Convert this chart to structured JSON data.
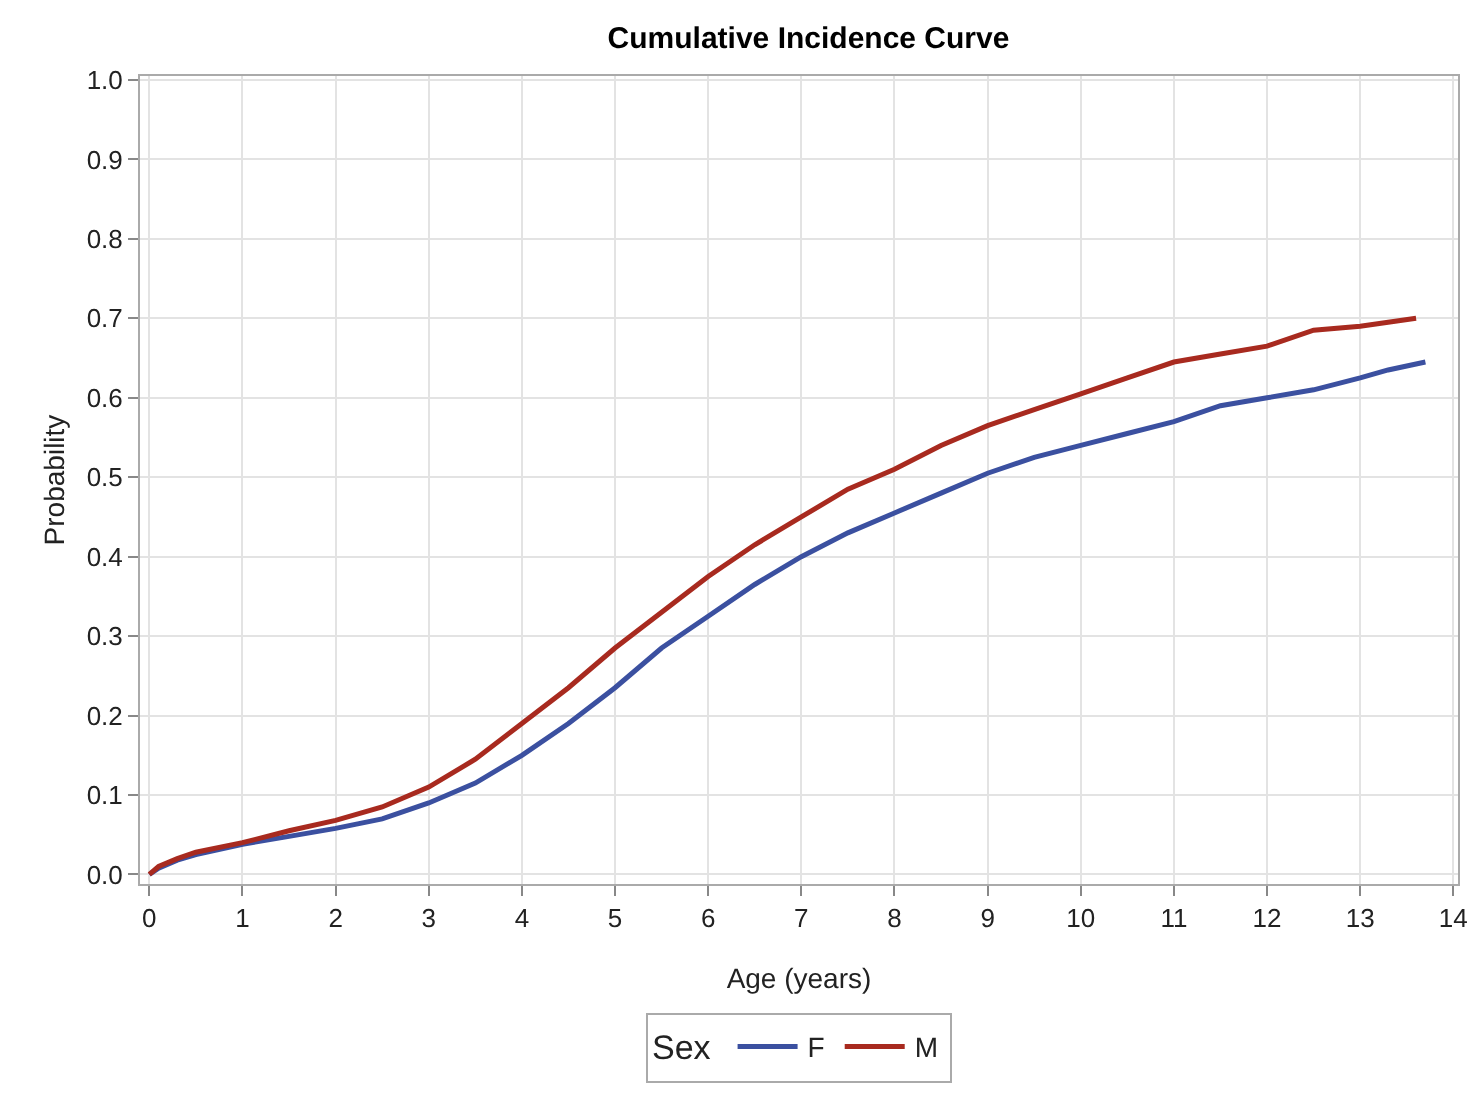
{
  "chart_data": {
    "type": "line",
    "title": "Cumulative Incidence Curve",
    "xlabel": "Age (years)",
    "ylabel": "Probability",
    "legend_title": "Sex",
    "legend": "bottom",
    "grid": true,
    "marker": "none",
    "line_style": "solid",
    "xlim": [
      -0.1,
      14.05
    ],
    "xticks": [
      0,
      1,
      2,
      3,
      4,
      5,
      6,
      7,
      8,
      9,
      10,
      11,
      12,
      13,
      14
    ],
    "ylim": [
      -0.012,
      1.005
    ],
    "yticks": [
      {
        "value": 0,
        "label": "0.0"
      },
      0.1,
      0.2,
      0.3,
      0.4,
      0.5,
      0.6,
      0.7,
      0.8,
      0.9,
      {
        "value": 1,
        "label": "1.0"
      }
    ],
    "series": [
      {
        "name": "F",
        "color": "#3b50a0",
        "x": [
          0,
          0.1,
          0.3,
          0.5,
          1,
          1.5,
          2,
          2.5,
          3,
          3.5,
          4,
          4.5,
          5,
          5.5,
          6,
          6.5,
          7,
          7.5,
          8,
          8.5,
          9,
          9.5,
          10,
          10.5,
          11,
          11.5,
          12,
          12.5,
          13,
          13.3,
          13.7
        ],
        "values": [
          0,
          0.008,
          0.018,
          0.025,
          0.038,
          0.048,
          0.058,
          0.07,
          0.09,
          0.115,
          0.15,
          0.19,
          0.235,
          0.285,
          0.325,
          0.365,
          0.4,
          0.43,
          0.455,
          0.48,
          0.505,
          0.525,
          0.54,
          0.555,
          0.57,
          0.59,
          0.6,
          0.61,
          0.625,
          0.635,
          0.645
        ]
      },
      {
        "name": "M",
        "color": "#a82a1f",
        "x": [
          0,
          0.1,
          0.3,
          0.5,
          1,
          1.5,
          2,
          2.5,
          3,
          3.5,
          4,
          4.5,
          5,
          5.5,
          6,
          6.5,
          7,
          7.5,
          8,
          8.5,
          9,
          9.5,
          10,
          10.5,
          11,
          11.5,
          12,
          12.5,
          13,
          13.3,
          13.6
        ],
        "values": [
          0,
          0.01,
          0.02,
          0.028,
          0.04,
          0.055,
          0.068,
          0.085,
          0.11,
          0.145,
          0.19,
          0.235,
          0.285,
          0.33,
          0.375,
          0.415,
          0.45,
          0.485,
          0.51,
          0.54,
          0.565,
          0.585,
          0.605,
          0.625,
          0.645,
          0.655,
          0.665,
          0.685,
          0.69,
          0.695,
          0.7
        ]
      }
    ]
  }
}
